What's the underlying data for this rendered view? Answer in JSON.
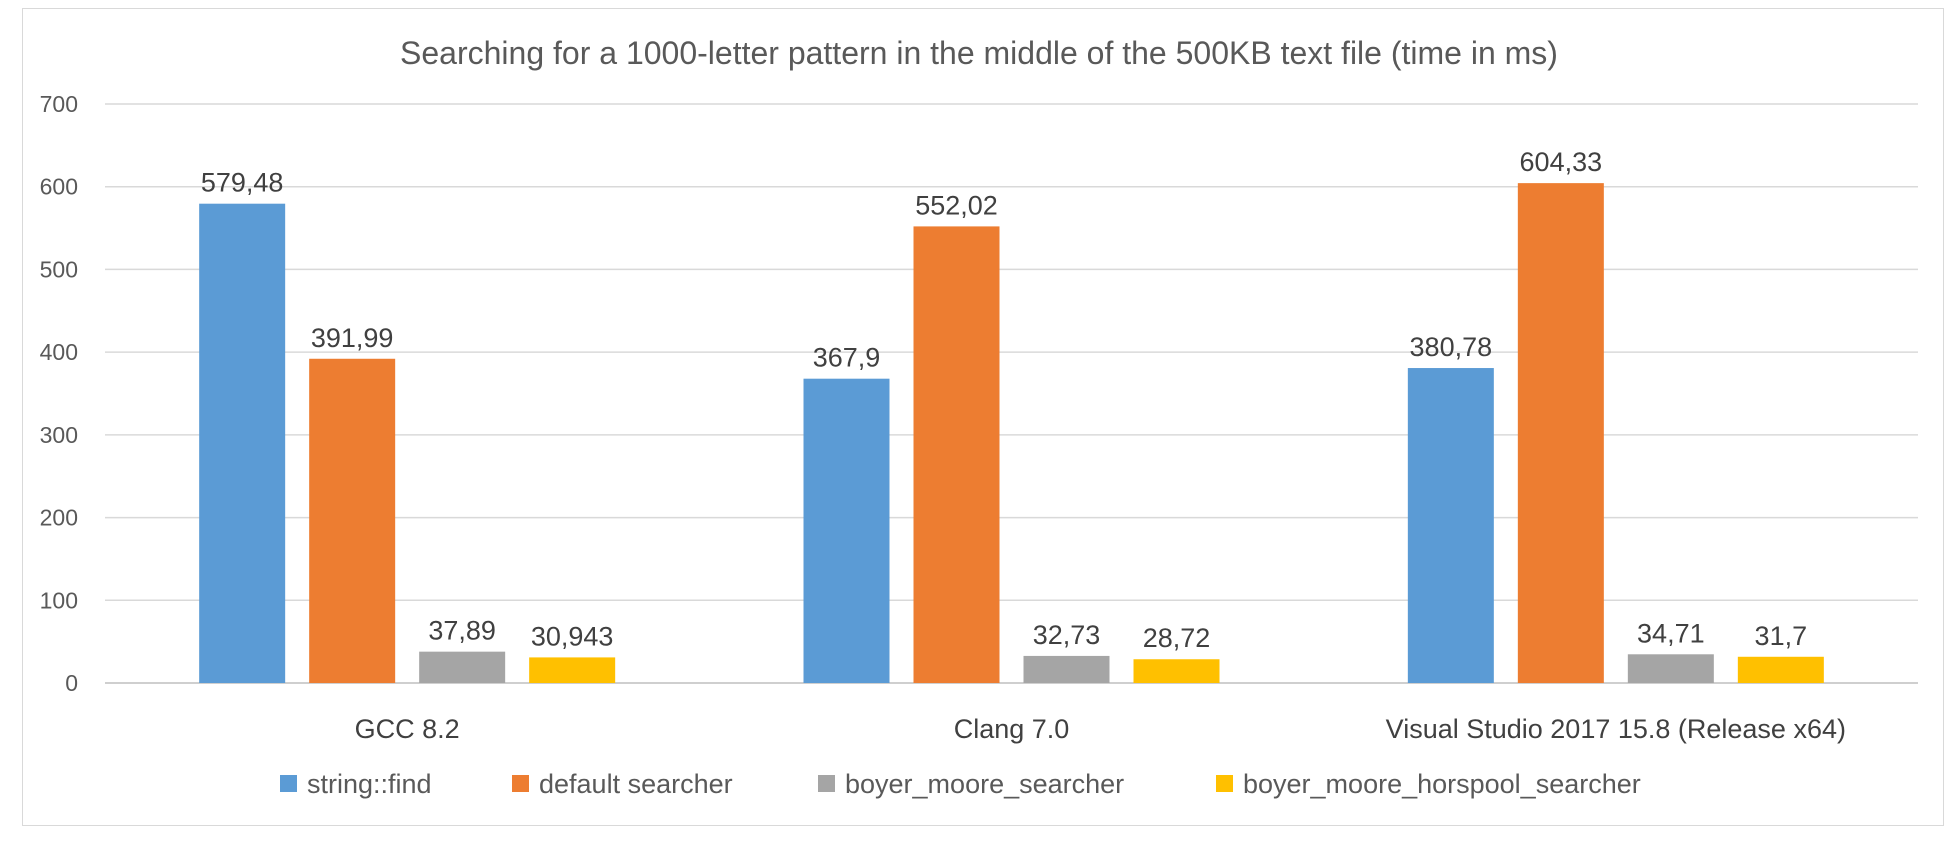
{
  "chart_data": {
    "type": "bar",
    "title": "Searching for a 1000-letter pattern in the middle of the 500KB text file (time in ms)",
    "xlabel": "",
    "ylabel": "",
    "categories": [
      "GCC 8.2",
      "Clang 7.0",
      "Visual Studio 2017 15.8 (Release x64)"
    ],
    "ylim": [
      0,
      700
    ],
    "yticks": [
      0,
      100,
      200,
      300,
      400,
      500,
      600,
      700
    ],
    "grid": true,
    "legend_position": "bottom",
    "series": [
      {
        "name": "string::find",
        "color": "#5b9bd5",
        "values": [
          579.48,
          367.9,
          380.78
        ],
        "labels": [
          "579,48",
          "367,9",
          "380,78"
        ]
      },
      {
        "name": "default searcher",
        "color": "#ed7d31",
        "values": [
          391.99,
          552.02,
          604.33
        ],
        "labels": [
          "391,99",
          "552,02",
          "604,33"
        ]
      },
      {
        "name": "boyer_moore_searcher",
        "color": "#a5a5a5",
        "values": [
          37.89,
          32.73,
          34.71
        ],
        "labels": [
          "37,89",
          "32,73",
          "34,71"
        ]
      },
      {
        "name": "boyer_moore_horspool_searcher",
        "color": "#ffc000",
        "values": [
          30.943,
          28.72,
          31.7
        ],
        "labels": [
          "30,943",
          "28,72",
          "31,7"
        ]
      }
    ]
  }
}
